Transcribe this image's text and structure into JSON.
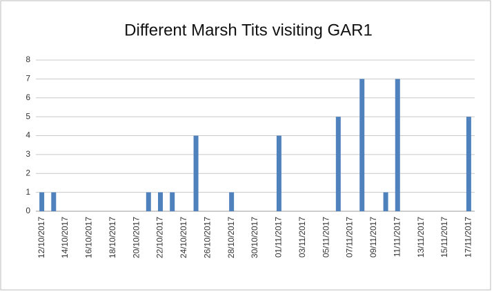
{
  "chart_data": {
    "type": "bar",
    "title": "Different Marsh Tits visiting GAR1",
    "categories": [
      "12/10/2017",
      null,
      "14/10/2017",
      null,
      "16/10/2017",
      null,
      "18/10/2017",
      null,
      "20/10/2017",
      null,
      "22/10/2017",
      null,
      "24/10/2017",
      null,
      "26/10/2017",
      null,
      "28/10/2017",
      null,
      "30/10/2017",
      null,
      "01/11/2017",
      null,
      "03/11/2017",
      null,
      "05/11/2017",
      null,
      "07/11/2017",
      null,
      "09/11/2017",
      null,
      "11/11/2017",
      null,
      "13/11/2017",
      null,
      "15/11/2017",
      null,
      "17/11/2017"
    ],
    "values": [
      1,
      1,
      0,
      0,
      0,
      0,
      0,
      0,
      0,
      1,
      1,
      1,
      0,
      4,
      0,
      0,
      1,
      0,
      0,
      0,
      4,
      0,
      0,
      0,
      0,
      5,
      0,
      7,
      0,
      1,
      7,
      0,
      0,
      0,
      0,
      0,
      5
    ],
    "color": "#4f81bd",
    "ylim": [
      0,
      8
    ],
    "yticks": [
      0,
      1,
      2,
      3,
      4,
      5,
      6,
      7,
      8
    ],
    "grid": true
  }
}
